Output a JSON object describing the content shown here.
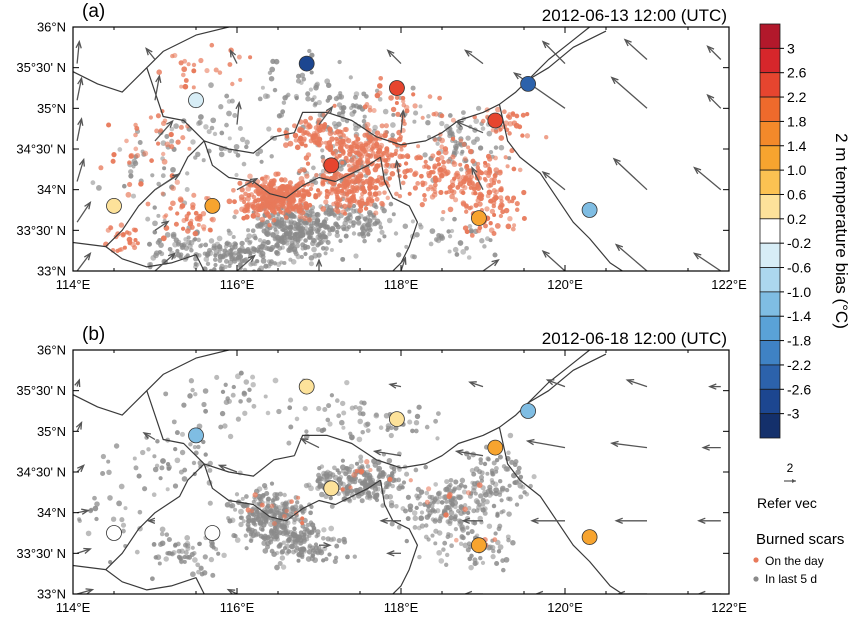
{
  "panels": [
    {
      "label": "(a)",
      "timestamp": "2012-06-13 12:00 (UTC)",
      "stations": [
        {
          "lon": 116.85,
          "lat": 35.55,
          "bias": -2.6
        },
        {
          "lon": 119.55,
          "lat": 35.3,
          "bias": -2.4
        },
        {
          "lon": 115.5,
          "lat": 35.1,
          "bias": -0.5
        },
        {
          "lon": 117.95,
          "lat": 35.25,
          "bias": 2.4
        },
        {
          "lon": 119.15,
          "lat": 34.85,
          "bias": 2.4
        },
        {
          "lon": 117.15,
          "lat": 34.3,
          "bias": 2.2
        },
        {
          "lon": 114.5,
          "lat": 33.8,
          "bias": 0.5
        },
        {
          "lon": 115.7,
          "lat": 33.8,
          "bias": 1.2
        },
        {
          "lon": 118.95,
          "lat": 33.65,
          "bias": 1.2
        },
        {
          "lon": 120.3,
          "lat": 33.75,
          "bias": -1.3
        }
      ],
      "wind": [
        {
          "lon": 114.05,
          "lat": 33.0,
          "u": 0.6,
          "v": 0.8
        },
        {
          "lon": 114.05,
          "lat": 33.6,
          "u": 0.6,
          "v": 0.9
        },
        {
          "lon": 114.05,
          "lat": 34.1,
          "u": 0.3,
          "v": 1.0
        },
        {
          "lon": 114.05,
          "lat": 34.6,
          "u": 0.2,
          "v": 1.0
        },
        {
          "lon": 114.05,
          "lat": 35.1,
          "u": 0.2,
          "v": 1.0
        },
        {
          "lon": 114.05,
          "lat": 35.55,
          "u": 0.1,
          "v": 1.0
        },
        {
          "lon": 115.0,
          "lat": 33.0,
          "u": 0.9,
          "v": 0.8
        },
        {
          "lon": 115.0,
          "lat": 33.5,
          "u": 0.6,
          "v": 0.4
        },
        {
          "lon": 115.0,
          "lat": 34.0,
          "u": 1.1,
          "v": 0.7
        },
        {
          "lon": 115.0,
          "lat": 34.6,
          "u": 0.8,
          "v": 0.9
        },
        {
          "lon": 115.0,
          "lat": 35.1,
          "u": 0.2,
          "v": 1.1
        },
        {
          "lon": 115.0,
          "lat": 35.6,
          "u": -0.4,
          "v": 0.5
        },
        {
          "lon": 116.0,
          "lat": 33.0,
          "u": 0.8,
          "v": 0.7
        },
        {
          "lon": 116.0,
          "lat": 34.0,
          "u": 0.9,
          "v": 0.5
        },
        {
          "lon": 116.0,
          "lat": 34.8,
          "u": 0.1,
          "v": 1.0
        },
        {
          "lon": 116.0,
          "lat": 35.55,
          "u": -0.3,
          "v": 0.6
        },
        {
          "lon": 117.0,
          "lat": 33.0,
          "u": 0.0,
          "v": 0.5
        },
        {
          "lon": 117.0,
          "lat": 34.8,
          "u": 0.6,
          "v": 0.8
        },
        {
          "lon": 118.0,
          "lat": 33.0,
          "u": 0.2,
          "v": 0.6
        },
        {
          "lon": 118.0,
          "lat": 34.0,
          "u": -0.2,
          "v": 1.3
        },
        {
          "lon": 118.0,
          "lat": 34.7,
          "u": 0.1,
          "v": 1.0
        },
        {
          "lon": 118.0,
          "lat": 35.55,
          "u": -0.6,
          "v": 0.6
        },
        {
          "lon": 119.0,
          "lat": 33.0,
          "u": 0.7,
          "v": 0.5
        },
        {
          "lon": 119.0,
          "lat": 34.0,
          "u": -0.5,
          "v": 1.0
        },
        {
          "lon": 119.0,
          "lat": 34.7,
          "u": -1.2,
          "v": 0.5
        },
        {
          "lon": 119.0,
          "lat": 35.55,
          "u": -0.8,
          "v": 0.6
        },
        {
          "lon": 120.0,
          "lat": 33.0,
          "u": -1.0,
          "v": 0.9
        },
        {
          "lon": 120.0,
          "lat": 34.0,
          "u": -1.0,
          "v": 0.8
        },
        {
          "lon": 120.0,
          "lat": 35.0,
          "u": -2.3,
          "v": 1.6
        },
        {
          "lon": 120.0,
          "lat": 35.55,
          "u": -1.0,
          "v": 1.0
        },
        {
          "lon": 121.0,
          "lat": 33.0,
          "u": -1.4,
          "v": 1.2
        },
        {
          "lon": 121.0,
          "lat": 34.0,
          "u": -1.5,
          "v": 1.4
        },
        {
          "lon": 121.0,
          "lat": 35.0,
          "u": -1.6,
          "v": 1.4
        },
        {
          "lon": 121.0,
          "lat": 35.6,
          "u": -1.0,
          "v": 0.9
        },
        {
          "lon": 121.9,
          "lat": 33.0,
          "u": -1.2,
          "v": 0.8
        },
        {
          "lon": 121.9,
          "lat": 34.0,
          "u": -1.2,
          "v": 1.0
        },
        {
          "lon": 121.9,
          "lat": 35.0,
          "u": -0.6,
          "v": 0.6
        },
        {
          "lon": 121.9,
          "lat": 35.6,
          "u": -0.6,
          "v": 0.6
        }
      ]
    },
    {
      "label": "(b)",
      "timestamp": "2012-06-18 12:00 (UTC)",
      "stations": [
        {
          "lon": 116.85,
          "lat": 35.55,
          "bias": 0.4
        },
        {
          "lon": 119.55,
          "lat": 35.25,
          "bias": -1.3
        },
        {
          "lon": 115.5,
          "lat": 34.95,
          "bias": -1.0
        },
        {
          "lon": 117.95,
          "lat": 35.15,
          "bias": 0.4
        },
        {
          "lon": 119.15,
          "lat": 34.8,
          "bias": 1.2
        },
        {
          "lon": 117.15,
          "lat": 34.3,
          "bias": 0.4
        },
        {
          "lon": 114.5,
          "lat": 33.75,
          "bias": 0.0
        },
        {
          "lon": 115.7,
          "lat": 33.75,
          "bias": 0.0
        },
        {
          "lon": 118.95,
          "lat": 33.6,
          "bias": 1.2
        },
        {
          "lon": 120.3,
          "lat": 33.7,
          "bias": 1.4
        }
      ],
      "wind": [
        {
          "lon": 114.05,
          "lat": 33.0,
          "u": 0.7,
          "v": 0.2
        },
        {
          "lon": 114.05,
          "lat": 33.5,
          "u": 0.6,
          "v": 0.2
        },
        {
          "lon": 114.05,
          "lat": 34.0,
          "u": 0.5,
          "v": 0.1
        },
        {
          "lon": 114.05,
          "lat": 34.5,
          "u": 0.3,
          "v": 0.3
        },
        {
          "lon": 114.05,
          "lat": 35.0,
          "u": 0.2,
          "v": 0.4
        },
        {
          "lon": 114.05,
          "lat": 35.55,
          "u": 0.1,
          "v": 0.3
        },
        {
          "lon": 115.0,
          "lat": 33.9,
          "u": -0.3,
          "v": 0.0
        },
        {
          "lon": 115.0,
          "lat": 34.9,
          "u": -0.5,
          "v": 0.3
        },
        {
          "lon": 116.0,
          "lat": 33.0,
          "u": -0.4,
          "v": 0.2
        },
        {
          "lon": 116.0,
          "lat": 34.5,
          "u": -0.8,
          "v": 0.3
        },
        {
          "lon": 117.0,
          "lat": 33.6,
          "u": 0.5,
          "v": 0.0
        },
        {
          "lon": 117.0,
          "lat": 34.8,
          "u": -0.8,
          "v": 0.4
        },
        {
          "lon": 118.0,
          "lat": 33.5,
          "u": -0.6,
          "v": 0.0
        },
        {
          "lon": 118.0,
          "lat": 33.9,
          "u": -0.9,
          "v": 0.0
        },
        {
          "lon": 118.0,
          "lat": 34.7,
          "u": -1.2,
          "v": 0.2
        },
        {
          "lon": 118.0,
          "lat": 35.55,
          "u": -0.5,
          "v": 0.1
        },
        {
          "lon": 119.0,
          "lat": 33.0,
          "u": -0.8,
          "v": 0.0
        },
        {
          "lon": 119.0,
          "lat": 33.9,
          "u": -0.9,
          "v": 0.0
        },
        {
          "lon": 119.0,
          "lat": 34.7,
          "u": -1.2,
          "v": 0.2
        },
        {
          "lon": 119.0,
          "lat": 35.55,
          "u": -0.6,
          "v": 0.2
        },
        {
          "lon": 120.0,
          "lat": 33.0,
          "u": -1.3,
          "v": 0.0
        },
        {
          "lon": 120.0,
          "lat": 33.9,
          "u": -1.5,
          "v": 0.0
        },
        {
          "lon": 120.0,
          "lat": 34.8,
          "u": -1.7,
          "v": 0.3
        },
        {
          "lon": 120.0,
          "lat": 35.55,
          "u": -0.8,
          "v": 0.3
        },
        {
          "lon": 121.0,
          "lat": 33.0,
          "u": -1.3,
          "v": 0.0
        },
        {
          "lon": 121.0,
          "lat": 33.9,
          "u": -1.4,
          "v": 0.0
        },
        {
          "lon": 121.0,
          "lat": 34.8,
          "u": -1.6,
          "v": 0.2
        },
        {
          "lon": 121.0,
          "lat": 35.55,
          "u": -0.9,
          "v": 0.3
        },
        {
          "lon": 121.9,
          "lat": 33.0,
          "u": -1.0,
          "v": 0.0
        },
        {
          "lon": 121.9,
          "lat": 33.9,
          "u": -1.0,
          "v": 0.0
        },
        {
          "lon": 121.9,
          "lat": 34.8,
          "u": -0.8,
          "v": 0.0
        },
        {
          "lon": 121.9,
          "lat": 35.55,
          "u": -0.5,
          "v": 0.0
        }
      ]
    }
  ],
  "axes": {
    "x_ticks": [
      "114°E",
      "116°E",
      "118°E",
      "120°E",
      "122°E"
    ],
    "y_ticks": [
      "33°N",
      "33°30' N",
      "34°N",
      "34°30' N",
      "35°N",
      "35°30' N",
      "36°N"
    ]
  },
  "colorbar": {
    "title": "2 m temperature bias (°C)",
    "labels": [
      "3",
      "2.6",
      "2.2",
      "1.8",
      "1.4",
      "1.0",
      "0.6",
      "0.2",
      "-0.2",
      "-0.6",
      "-1.0",
      "-1.4",
      "-1.8",
      "-2.2",
      "-2.6",
      "-3"
    ],
    "colors": [
      "#b2182b",
      "#d6262b",
      "#e6452f",
      "#ee6a2c",
      "#f4892a",
      "#f7a42f",
      "#fbc252",
      "#fde29a",
      "#ffffff",
      "#d7edf6",
      "#acd7ee",
      "#7fbde3",
      "#5aa2d7",
      "#3f82c4",
      "#2c62ab",
      "#1c4690",
      "#14306b"
    ]
  },
  "vector_legend": {
    "value": "2",
    "label": "Refer vec"
  },
  "scars_legend": {
    "title": "Burned scars",
    "items": [
      {
        "label": "On the day",
        "color": "#e8795a"
      },
      {
        "label": "In last 5 d",
        "color": "#8a8a8a"
      }
    ]
  }
}
